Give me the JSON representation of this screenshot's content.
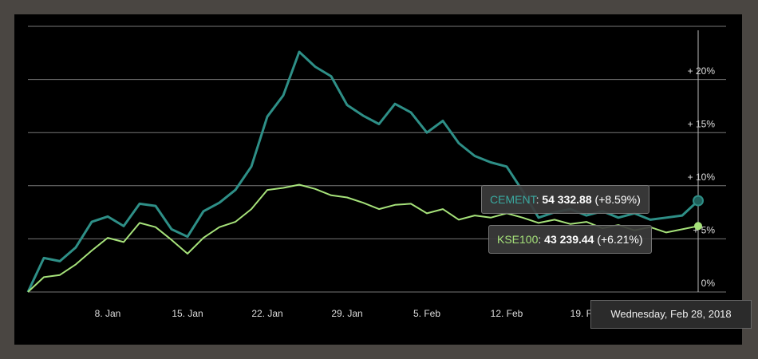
{
  "chart_data": {
    "type": "line",
    "categories": [
      null,
      null,
      null,
      null,
      null,
      "8. Jan",
      null,
      null,
      null,
      null,
      "15. Jan",
      null,
      null,
      null,
      null,
      "22. Jan",
      null,
      null,
      null,
      null,
      "29. Jan",
      null,
      null,
      null,
      null,
      "5. Feb",
      null,
      null,
      null,
      null,
      "12. Feb",
      null,
      null,
      null,
      null,
      "19. Feb",
      null,
      null,
      null,
      null,
      null,
      null,
      null
    ],
    "series": [
      {
        "name": "CEMENT",
        "color": "#2e8f87",
        "values": [
          0,
          3.2,
          2.9,
          4.2,
          6.6,
          7.1,
          6.2,
          8.3,
          8.1,
          5.9,
          5.2,
          7.6,
          8.4,
          9.6,
          11.8,
          16.5,
          18.5,
          22.6,
          21.2,
          20.3,
          17.6,
          16.6,
          15.8,
          17.7,
          16.9,
          15.0,
          16.1,
          14.0,
          12.8,
          12.2,
          11.8,
          9.5,
          7.0,
          7.5,
          7.8,
          7.2,
          7.6,
          7.0,
          7.4,
          6.8,
          7.0,
          7.2,
          8.59
        ]
      },
      {
        "name": "KSE100",
        "color": "#a6e27a",
        "values": [
          0,
          1.4,
          1.6,
          2.6,
          3.9,
          5.1,
          4.7,
          6.5,
          6.1,
          4.9,
          3.6,
          5.1,
          6.1,
          6.6,
          7.8,
          9.6,
          9.8,
          10.1,
          9.7,
          9.1,
          8.9,
          8.4,
          7.8,
          8.2,
          8.3,
          7.4,
          7.8,
          6.8,
          7.2,
          7.0,
          7.4,
          7.0,
          6.5,
          6.8,
          6.4,
          6.6,
          6.0,
          6.3,
          5.8,
          6.1,
          5.6,
          5.9,
          6.21
        ]
      }
    ],
    "ylim": [
      0,
      25
    ],
    "yticks": [
      {
        "value": 0,
        "label": "0%"
      },
      {
        "value": 5,
        "label": "+ 5%"
      },
      {
        "value": 10,
        "label": "+ 10%"
      },
      {
        "value": 15,
        "label": "+ 15%"
      },
      {
        "value": 20,
        "label": "+ 20%"
      }
    ],
    "grid": true,
    "tooltip": {
      "date": "Wednesday, Feb 28, 2018",
      "items": [
        {
          "value": "54 332.88",
          "change": "(+8.59%)"
        },
        {
          "value": "43 239.44",
          "change": "(+6.21%)"
        }
      ]
    }
  }
}
